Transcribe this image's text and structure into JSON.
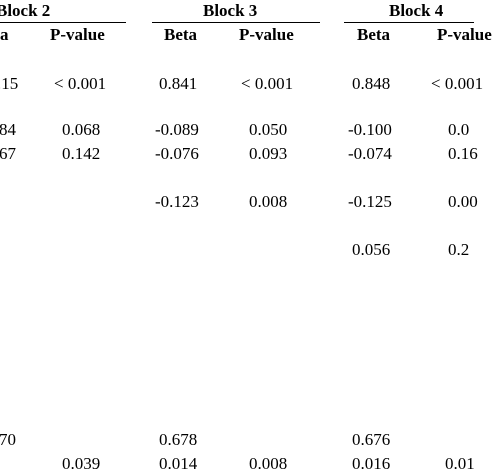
{
  "block_headers": [
    "Block 2",
    "Block 3",
    "Block 4"
  ],
  "column_headers": {
    "b2_beta": "a",
    "b2_p": "P-value",
    "b3_beta": "Beta",
    "b3_p": "P-value",
    "b4_beta": "Beta",
    "b4_p": "P-value"
  },
  "rows": [
    {
      "b2_beta": ".15",
      "b2_p": "< 0.001",
      "b3_beta": "0.841",
      "b3_p": "< 0.001",
      "b4_beta": "0.848",
      "b4_p": "< 0.001"
    },
    {
      "b2_beta": "84",
      "b2_p": "0.068",
      "b3_beta": "-0.089",
      "b3_p": "0.050",
      "b4_beta": "-0.100",
      "b4_p": "0.0"
    },
    {
      "b2_beta": "67",
      "b2_p": "0.142",
      "b3_beta": "-0.076",
      "b3_p": "0.093",
      "b4_beta": "-0.074",
      "b4_p": "0.16"
    },
    {
      "b3_beta": "-0.123",
      "b3_p": "0.008",
      "b4_beta": "-0.125",
      "b4_p": "0.00"
    },
    {
      "b4_beta": "0.056",
      "b4_p": "0.2"
    },
    {
      "b2_beta": "70",
      "b3_beta": "0.678",
      "b4_beta": "0.676"
    },
    {
      "b2_beta": "",
      "b2_p": "0.039",
      "b3_beta": "0.014",
      "b3_p": "0.008",
      "b4_beta": "0.016",
      "b4_p": "0.01"
    }
  ]
}
